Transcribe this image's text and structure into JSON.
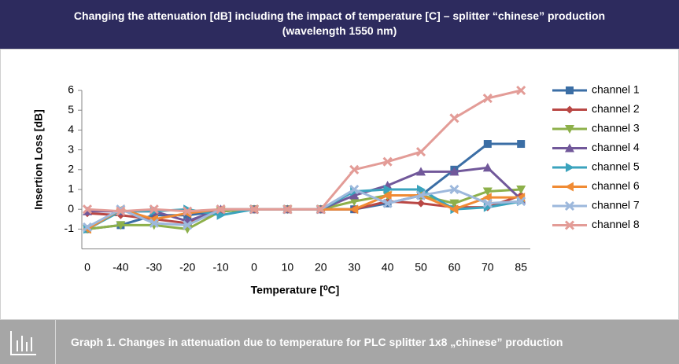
{
  "header": {
    "title": [
      "Changing the attenuation [dB] including the impact of temperature [C] – splitter “chinese” production",
      "(wavelength 1550 nm)"
    ]
  },
  "chart_data": {
    "type": "line",
    "categories": [
      "0",
      "-40",
      "-30",
      "-20",
      "-10",
      "0",
      "10",
      "20",
      "30",
      "40",
      "50",
      "60",
      "70",
      "85"
    ],
    "x_label": "Temperature [⁰C]",
    "y_label": "Insertion Loss [dB]",
    "ylim": [
      -2,
      6
    ],
    "yticks": [
      -1,
      0,
      1,
      2,
      3,
      4,
      5,
      6
    ],
    "legend": "right",
    "series": [
      {
        "name": "channel 1",
        "color": "#3b6ea5",
        "marker": "square",
        "values": [
          -1,
          -0.8,
          -0.3,
          -0.3,
          -0.1,
          0,
          0,
          0,
          0,
          0.3,
          0.7,
          2,
          3.3,
          3.3
        ]
      },
      {
        "name": "channel 2",
        "color": "#b94744",
        "marker": "diamond",
        "values": [
          -0.2,
          -0.3,
          -0.5,
          -0.7,
          -0.1,
          0,
          0,
          0,
          0,
          0.4,
          0.3,
          0.1,
          0.1,
          0.7
        ]
      },
      {
        "name": "channel 3",
        "color": "#8db04a",
        "marker": "triangle-down",
        "values": [
          -1,
          -0.8,
          -0.8,
          -1,
          -0.1,
          0,
          0,
          0,
          0.4,
          0.7,
          0.7,
          0.3,
          0.9,
          1
        ]
      },
      {
        "name": "channel 4",
        "color": "#71589a",
        "marker": "triangle-up",
        "values": [
          -0.1,
          -0.1,
          -0.1,
          -0.6,
          0,
          0,
          0,
          0,
          0.7,
          1.2,
          1.9,
          1.9,
          2.1,
          0.5
        ]
      },
      {
        "name": "channel 5",
        "color": "#3ba3bd",
        "marker": "triangle-right",
        "values": [
          -1,
          -0.1,
          -0.1,
          0,
          -0.3,
          0,
          0,
          0,
          0.9,
          1,
          1,
          0,
          0.1,
          0.4
        ]
      },
      {
        "name": "channel 6",
        "color": "#f08b34",
        "marker": "triangle-left",
        "values": [
          -1,
          0,
          -0.5,
          -0.2,
          0,
          0,
          0,
          0,
          0,
          0.7,
          0.7,
          0,
          0.6,
          0.6
        ]
      },
      {
        "name": "channel 7",
        "color": "#9db8dc",
        "marker": "x",
        "values": [
          -0.9,
          0,
          -0.7,
          -0.8,
          0,
          0,
          0,
          0,
          1,
          0.3,
          0.7,
          1,
          0.3,
          0.4
        ]
      },
      {
        "name": "channel 8",
        "color": "#e39c97",
        "marker": "x",
        "values": [
          0,
          -0.1,
          0,
          -0.1,
          0,
          0,
          0,
          0,
          2,
          2.4,
          2.9,
          4.6,
          5.6,
          6
        ]
      }
    ]
  },
  "footer": {
    "caption": "Graph 1. Changes in attenuation due to temperature for PLC splitter 1x8 „chinese” production"
  }
}
